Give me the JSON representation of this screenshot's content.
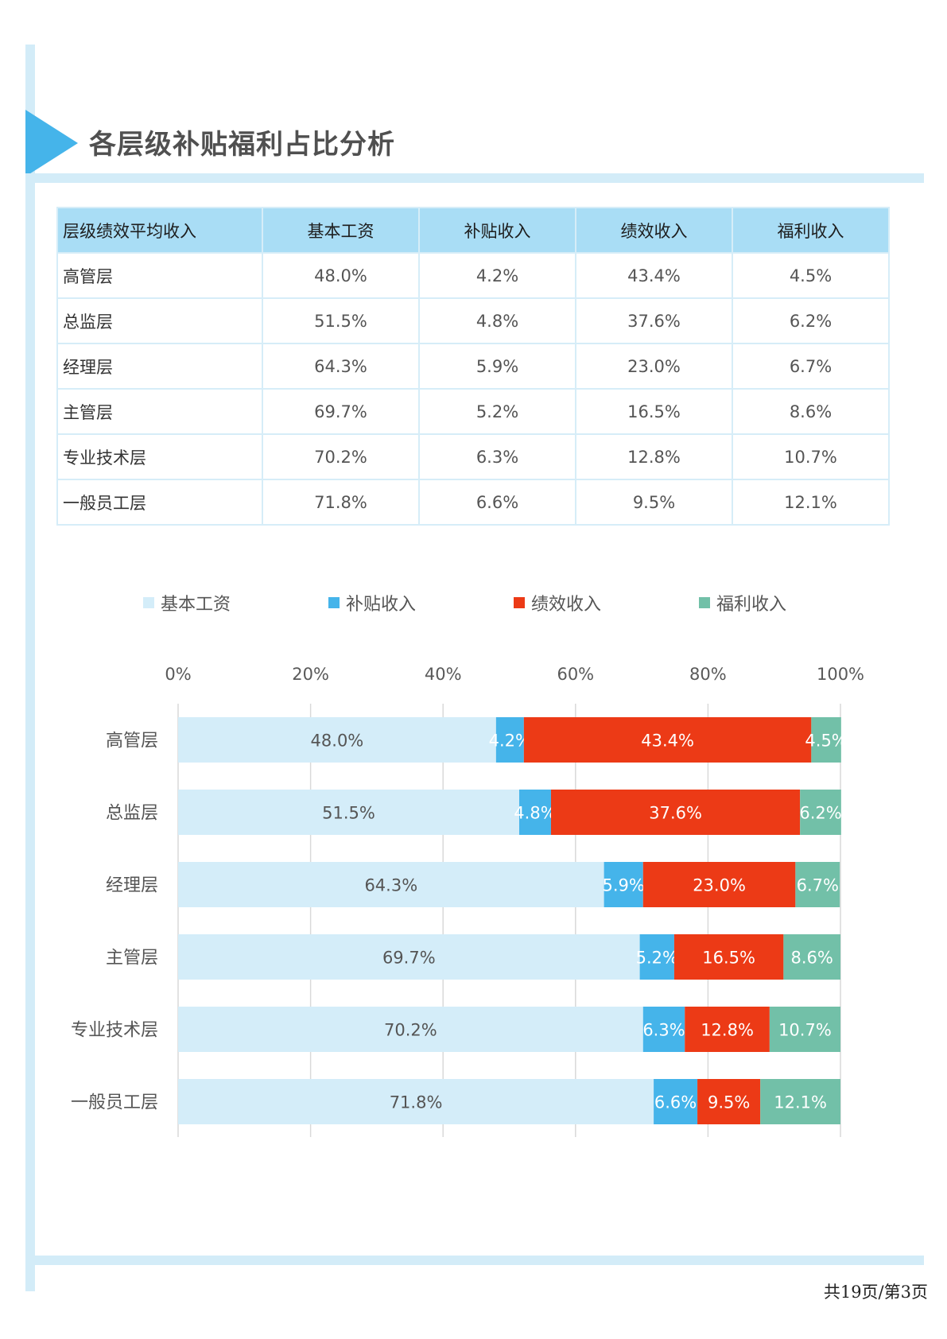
{
  "page": {
    "title": "各层级补贴福利占比分析",
    "footer": "共19页/第3页"
  },
  "table": {
    "headers": [
      "层级绩效平均收入",
      "基本工资",
      "补贴收入",
      "绩效收入",
      "福利收入"
    ],
    "rows": [
      [
        "高管层",
        "48.0%",
        "4.2%",
        "43.4%",
        "4.5%"
      ],
      [
        "总监层",
        "51.5%",
        "4.8%",
        "37.6%",
        "6.2%"
      ],
      [
        "经理层",
        "64.3%",
        "5.9%",
        "23.0%",
        "6.7%"
      ],
      [
        "主管层",
        "69.7%",
        "5.2%",
        "16.5%",
        "8.6%"
      ],
      [
        "专业技术层",
        "70.2%",
        "6.3%",
        "12.8%",
        "10.7%"
      ],
      [
        "一般员工层",
        "71.8%",
        "6.6%",
        "9.5%",
        "12.1%"
      ]
    ]
  },
  "chart_data": {
    "type": "bar",
    "orientation": "horizontal",
    "stacked": "percent",
    "categories": [
      "高管层",
      "总监层",
      "经理层",
      "主管层",
      "专业技术层",
      "一般员工层"
    ],
    "series": [
      {
        "name": "基本工资",
        "color": "#d4edf9",
        "label_color": "#555555",
        "values": [
          48.0,
          51.5,
          64.3,
          69.7,
          70.2,
          71.8
        ]
      },
      {
        "name": "补贴收入",
        "color": "#45b4ea",
        "label_color": "#ffffff",
        "values": [
          4.2,
          4.8,
          5.9,
          5.2,
          6.3,
          6.6
        ]
      },
      {
        "name": "绩效收入",
        "color": "#ec3a16",
        "label_color": "#ffffff",
        "values": [
          43.4,
          37.6,
          23.0,
          16.5,
          12.8,
          9.5
        ]
      },
      {
        "name": "福利收入",
        "color": "#72c0a8",
        "label_color": "#ffffff",
        "values": [
          4.5,
          6.2,
          6.7,
          8.6,
          10.7,
          12.1
        ]
      }
    ],
    "xlim": [
      0,
      100
    ],
    "xticks": [
      "0%",
      "20%",
      "40%",
      "60%",
      "80%",
      "100%"
    ],
    "xaxis_position": "top",
    "legend_position": "top",
    "grid": true
  }
}
